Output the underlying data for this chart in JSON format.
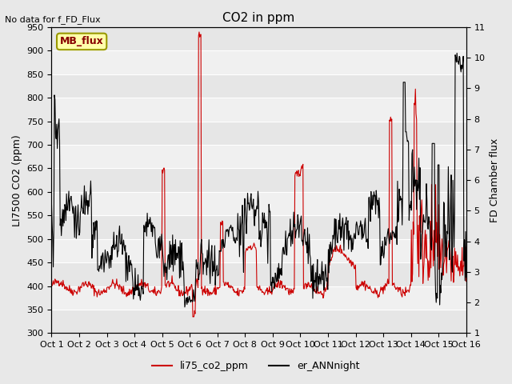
{
  "title": "CO2 in ppm",
  "top_left_text": "No data for f_FD_Flux",
  "ylabel_left": "LI7500 CO2 (ppm)",
  "ylabel_right": "FD Chamber flux",
  "ylim_left": [
    300,
    950
  ],
  "ylim_right": [
    1.0,
    11.0
  ],
  "yticks_left": [
    300,
    350,
    400,
    450,
    500,
    550,
    600,
    650,
    700,
    750,
    800,
    850,
    900,
    950
  ],
  "yticks_right": [
    1.0,
    2.0,
    3.0,
    4.0,
    5.0,
    6.0,
    7.0,
    8.0,
    9.0,
    10.0,
    11.0
  ],
  "xtick_labels": [
    "Oct 1",
    "Oct 2",
    "Oct 3",
    "Oct 4",
    "Oct 5",
    "Oct 6",
    "Oct 7",
    "Oct 8",
    "Oct 9",
    "Oct 10",
    "Oct 11",
    "Oct 12",
    "Oct 13",
    "Oct 14",
    "Oct 15",
    "Oct 16"
  ],
  "legend_labels": [
    "li75_co2_ppm",
    "er_ANNnight"
  ],
  "legend_colors": [
    "#cc0000",
    "#000000"
  ],
  "mb_flux_label": "MB_flux",
  "mb_flux_bg": "#ffffaa",
  "mb_flux_border": "#999900",
  "mb_flux_text_color": "#880000",
  "background_color": "#e8e8e8",
  "plot_bg_color": "#f0f0f0",
  "grid_color": "#ffffff",
  "title_fontsize": 11,
  "axis_fontsize": 9,
  "tick_fontsize": 8
}
